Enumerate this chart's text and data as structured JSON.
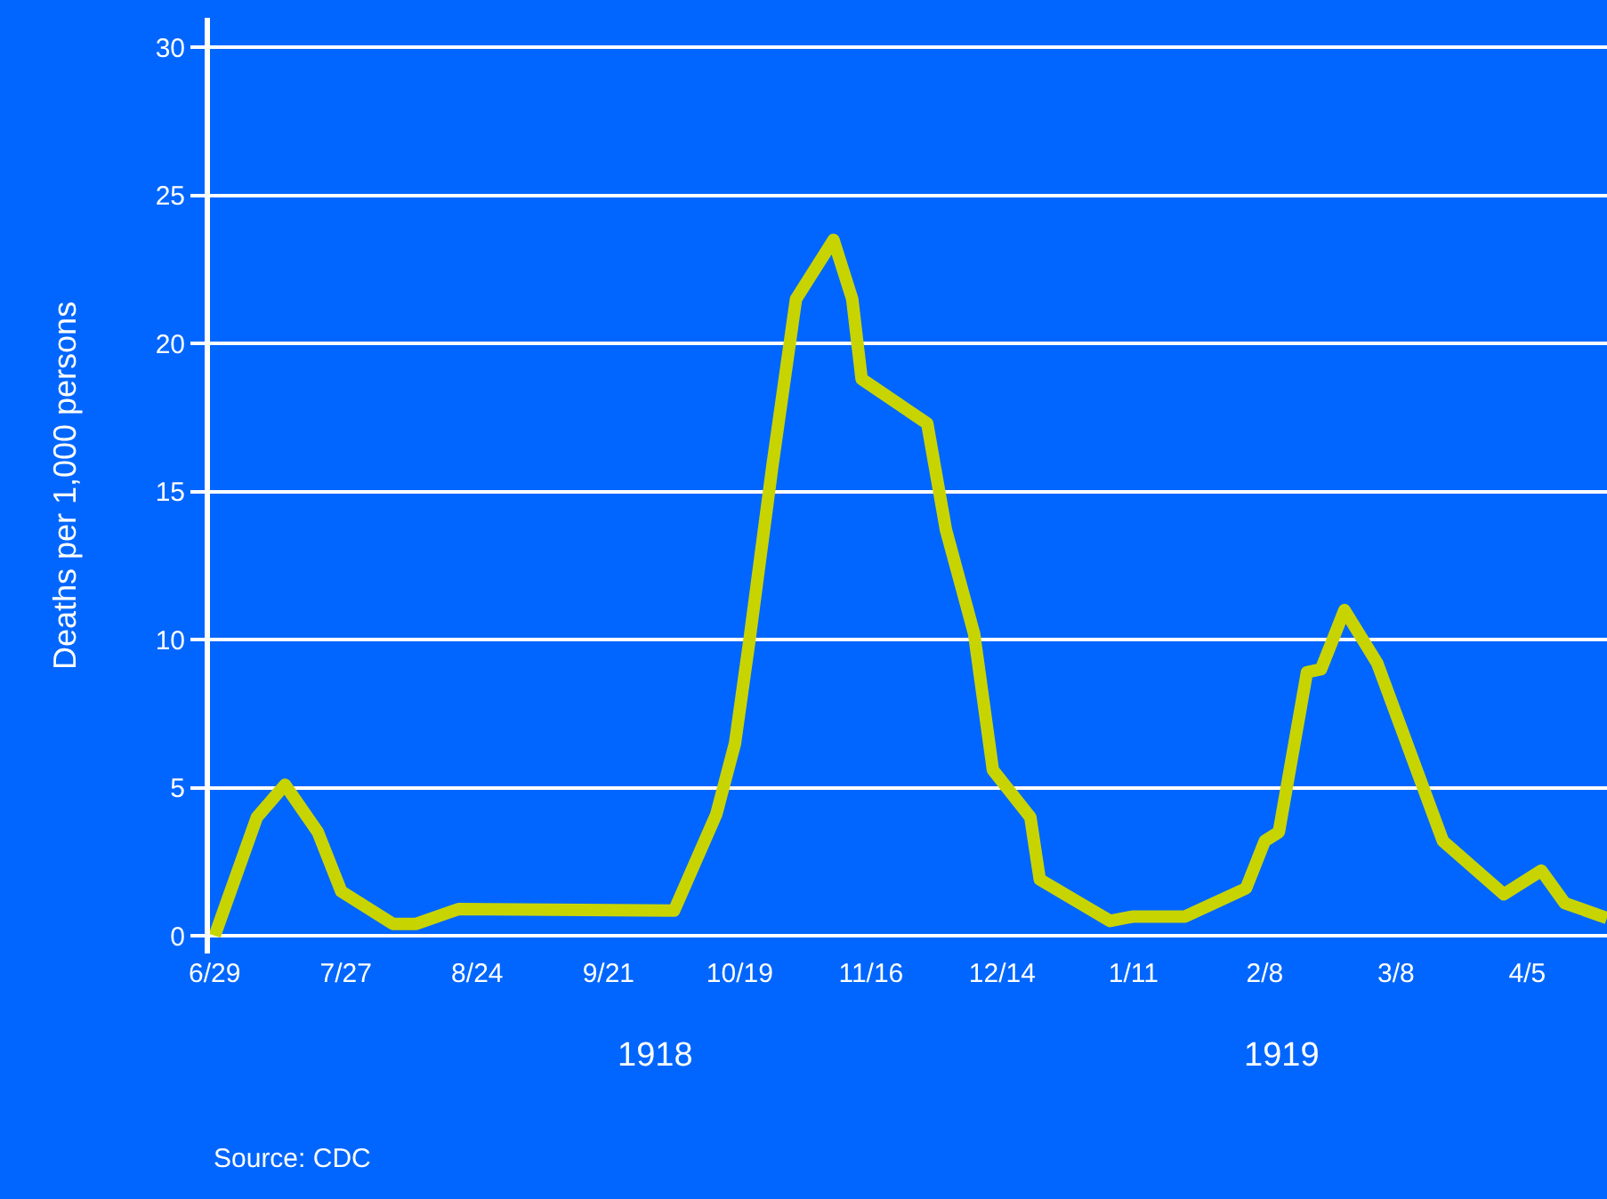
{
  "chart_data": {
    "type": "line",
    "ylabel": "Deaths per 1,000 persons",
    "x": [
      "1918-06-29",
      "1918-07-08",
      "1918-07-14",
      "1918-07-21",
      "1918-07-26",
      "1918-08-06",
      "1918-08-11",
      "1918-08-20",
      "1918-10-05",
      "1918-10-14",
      "1918-10-18",
      "1918-10-21",
      "1918-10-24",
      "1918-10-26",
      "1918-10-31",
      "1918-11-08",
      "1918-11-12",
      "1918-11-14",
      "1918-11-28",
      "1918-12-02",
      "1918-12-08",
      "1918-12-12",
      "1918-12-20",
      "1918-12-22",
      "1919-01-06",
      "1919-01-11",
      "1919-01-22",
      "1919-02-04",
      "1919-02-08",
      "1919-02-11",
      "1919-02-17",
      "1919-02-20",
      "1919-02-25",
      "1919-03-04",
      "1919-03-18",
      "1919-03-31",
      "1919-04-08",
      "1919-04-13",
      "1919-04-22"
    ],
    "series": [
      {
        "color": "#c8d400",
        "values": [
          0,
          4.0,
          5.1,
          3.5,
          1.5,
          0.4,
          0.4,
          0.9,
          0.85,
          4.1,
          6.5,
          9.9,
          13.5,
          15.9,
          21.5,
          23.5,
          21.5,
          18.8,
          17.3,
          13.7,
          10.2,
          5.6,
          4.0,
          1.9,
          0.5,
          0.65,
          0.65,
          1.6,
          3.2,
          3.5,
          8.9,
          9.0,
          11.0,
          9.2,
          3.2,
          1.4,
          2.2,
          1.1,
          0.6
        ]
      }
    ],
    "xlim": [
      "1918-06-28",
      "1919-04-22"
    ],
    "xticks": [
      {
        "value": "1918-06-29",
        "label": "6/29"
      },
      {
        "value": "1918-07-27",
        "label": "7/27"
      },
      {
        "value": "1918-08-24",
        "label": "8/24"
      },
      {
        "value": "1918-09-21",
        "label": "9/21"
      },
      {
        "value": "1918-10-19",
        "label": "10/19"
      },
      {
        "value": "1918-11-16",
        "label": "11/16"
      },
      {
        "value": "1918-12-14",
        "label": "12/14"
      },
      {
        "value": "1919-01-11",
        "label": "1/11"
      },
      {
        "value": "1919-02-08",
        "label": "2/8"
      },
      {
        "value": "1919-03-08",
        "label": "3/8"
      },
      {
        "value": "1919-04-05",
        "label": "4/5"
      }
    ],
    "ylim": [
      -0.6,
      31
    ],
    "yticks": [
      0,
      5,
      10,
      15,
      20,
      25,
      30
    ],
    "grid": "y",
    "marker": "none",
    "line_style": "solid",
    "annotations": [
      "1918",
      "1919",
      "Source: CDC"
    ]
  }
}
